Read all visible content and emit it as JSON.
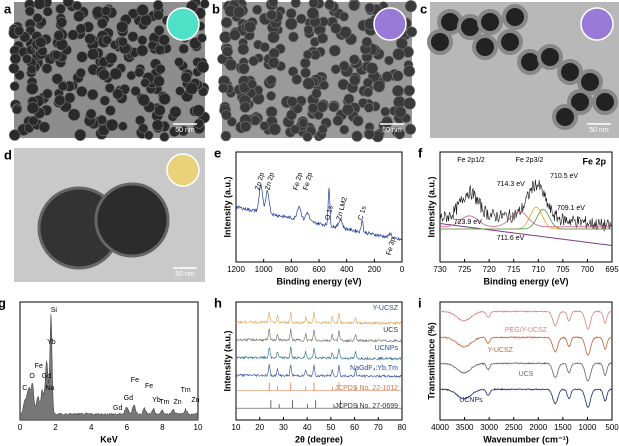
{
  "panels": {
    "a": {
      "label": "a",
      "scale": "50 nm"
    },
    "b": {
      "label": "b",
      "scale": "50 nm"
    },
    "c": {
      "label": "c",
      "scale": "50 nm"
    },
    "d": {
      "label": "d",
      "scale": "50 nm"
    },
    "e": {
      "label": "e",
      "xlabel": "Binding energy (eV)",
      "ylabel": "Intensity (a.u.)",
      "xticks": [
        1200,
        1000,
        800,
        600,
        400,
        200,
        0
      ],
      "annotations": [
        "Zn 2p",
        "Zn 2p",
        "Fe 2p",
        "Fe 2p",
        "O 1s",
        "Zn LM2",
        "C 1s",
        "Fe 3p"
      ]
    },
    "f": {
      "label": "f",
      "title": "Fe 2p",
      "xlabel": "Binding energy (eV)",
      "ylabel": "Intensity (a.u.)",
      "xticks": [
        730,
        725,
        720,
        715,
        710,
        705,
        700,
        695
      ],
      "annotations": [
        "Fe 2p1/2",
        "Fe 2p3/2",
        "714.3 eV",
        "710.5 eV",
        "709.1 eV",
        "723.9 eV",
        "711.6 eV"
      ]
    },
    "g": {
      "label": "g",
      "xlabel": "KeV",
      "xticks": [
        0,
        2,
        4,
        6,
        8,
        10
      ],
      "annotations": [
        "Si",
        "Yb",
        "Fe",
        "O",
        "Gd",
        "C",
        "Na",
        "Gd",
        "Gd",
        "Fe",
        "Fe",
        "Yb",
        "Tm",
        "Zn",
        "Tm",
        "Zn"
      ]
    },
    "h": {
      "label": "h",
      "xlabel": "2θ (degree)",
      "ylabel": "Intensity (a.u.)",
      "xticks": [
        10,
        20,
        30,
        40,
        50,
        60,
        70,
        80
      ],
      "annotations": [
        "Y-UCSZ",
        "UCS",
        "UCNPs",
        "NaGdF₄:Yb,Tm",
        "JCPDS No. 22-1012",
        "JCPDS No. 27-0699"
      ]
    },
    "i": {
      "label": "i",
      "xlabel": "Wavenumber (cm⁻¹)",
      "ylabel": "Transmittance (%)",
      "xticks": [
        4000,
        3500,
        3000,
        2500,
        2000,
        1500,
        1000,
        500
      ],
      "annotations": [
        "PEG/Y-UCSZ",
        "Y-UCSZ",
        "UCS",
        "UCNPs"
      ]
    }
  }
}
